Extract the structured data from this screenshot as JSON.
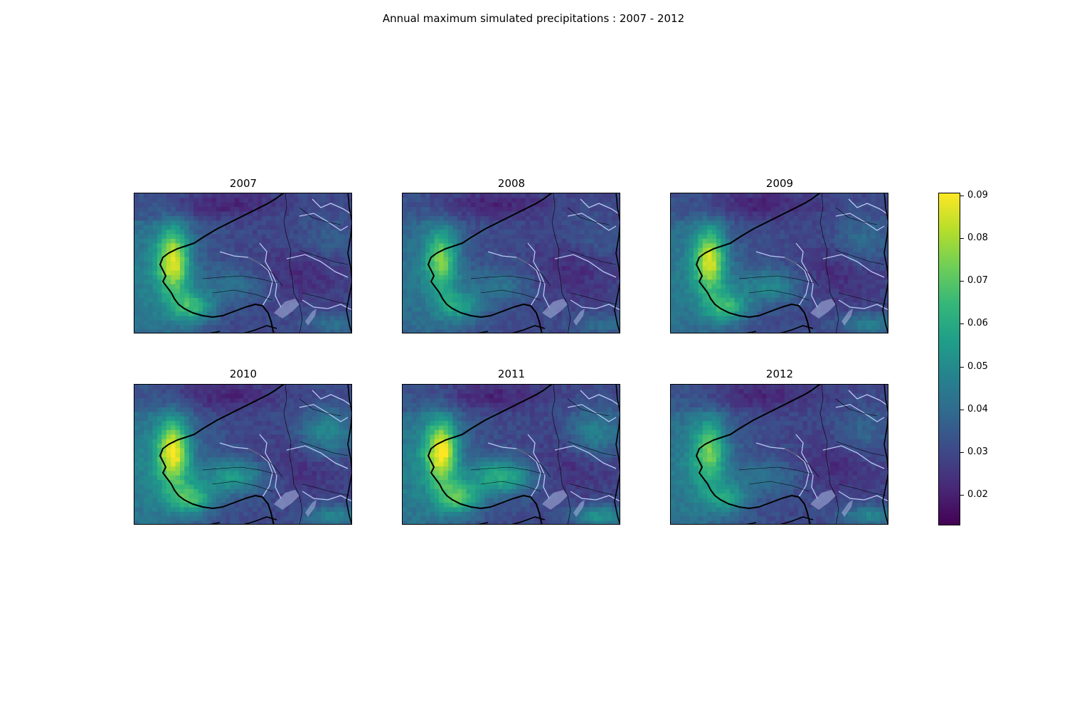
{
  "figure": {
    "title": "Annual maximum simulated precipitations : 2007 - 2012"
  },
  "colormap": {
    "name": "viridis",
    "stops": [
      "#440154",
      "#482878",
      "#3e4989",
      "#31688e",
      "#26828e",
      "#1f9e89",
      "#35b779",
      "#6ece58",
      "#b5de2b",
      "#fde725"
    ],
    "land_outline_color": "#000000",
    "river_color": "#c8d4ff",
    "lake_color": "#a9b4de"
  },
  "panels": [
    {
      "label": "2007",
      "intensity": {
        "west_coast": 0.8,
        "north_sea": 0.38,
        "inland": 0.18,
        "south_east": 0.22,
        "east_interior": 0.15
      }
    },
    {
      "label": "2008",
      "intensity": {
        "west_coast": 0.62,
        "north_sea": 0.3,
        "inland": 0.2,
        "south_east": 0.2,
        "east_interior": 0.1
      }
    },
    {
      "label": "2009",
      "intensity": {
        "west_coast": 0.78,
        "north_sea": 0.35,
        "inland": 0.3,
        "south_east": 0.3,
        "east_interior": 0.25
      }
    },
    {
      "label": "2010",
      "intensity": {
        "west_coast": 0.82,
        "north_sea": 0.42,
        "inland": 0.4,
        "south_east": 0.35,
        "east_interior": 0.45
      }
    },
    {
      "label": "2011",
      "intensity": {
        "west_coast": 0.85,
        "north_sea": 0.4,
        "inland": 0.5,
        "south_east": 0.42,
        "east_interior": 0.4
      }
    },
    {
      "label": "2012",
      "intensity": {
        "west_coast": 0.55,
        "north_sea": 0.38,
        "inland": 0.18,
        "south_east": 0.35,
        "east_interior": 0.2
      }
    }
  ],
  "colorbar": {
    "min": 0.013,
    "max": 0.0905,
    "ticks": [
      {
        "value": 0.02,
        "label": "0.02"
      },
      {
        "value": 0.03,
        "label": "0.03"
      },
      {
        "value": 0.04,
        "label": "0.04"
      },
      {
        "value": 0.05,
        "label": "0.05"
      },
      {
        "value": 0.06,
        "label": "0.06"
      },
      {
        "value": 0.07,
        "label": "0.07"
      },
      {
        "value": 0.08,
        "label": "0.08"
      },
      {
        "value": 0.09,
        "label": "0.09"
      }
    ]
  }
}
